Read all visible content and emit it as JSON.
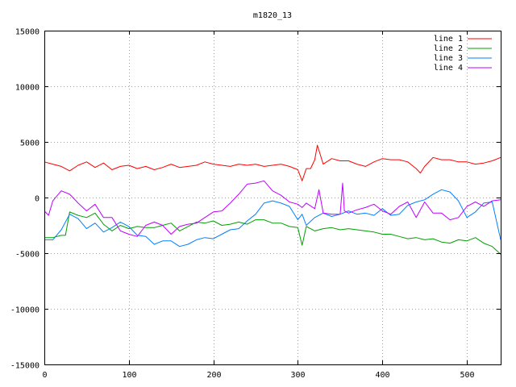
{
  "chart_data": {
    "type": "line",
    "title": "m1820_13",
    "xlabel": "",
    "ylabel": "",
    "xlim": [
      0,
      540
    ],
    "ylim": [
      -15000,
      15000
    ],
    "xticks": [
      0,
      100,
      200,
      300,
      400,
      500
    ],
    "yticks": [
      -15000,
      -10000,
      -5000,
      0,
      5000,
      10000,
      15000
    ],
    "grid": true,
    "legend_position": "top-right",
    "series": [
      {
        "name": "line 1",
        "color": "#ff0000",
        "x": [
          0,
          10,
          20,
          30,
          40,
          50,
          60,
          70,
          80,
          90,
          100,
          110,
          120,
          130,
          140,
          150,
          160,
          170,
          180,
          190,
          200,
          210,
          220,
          230,
          240,
          250,
          260,
          270,
          280,
          290,
          300,
          305,
          310,
          315,
          320,
          323,
          330,
          340,
          350,
          360,
          370,
          380,
          390,
          400,
          410,
          420,
          430,
          440,
          445,
          450,
          460,
          470,
          480,
          490,
          500,
          510,
          520,
          530,
          540
        ],
        "y": [
          3200,
          3000,
          2800,
          2400,
          2900,
          3200,
          2700,
          3100,
          2500,
          2800,
          2900,
          2600,
          2800,
          2500,
          2700,
          3000,
          2700,
          2800,
          2900,
          3200,
          3000,
          2900,
          2800,
          3000,
          2900,
          3000,
          2800,
          2900,
          3000,
          2800,
          2500,
          1500,
          2600,
          2600,
          3400,
          4700,
          3000,
          3500,
          3300,
          3300,
          3000,
          2800,
          3200,
          3500,
          3400,
          3400,
          3200,
          2600,
          2200,
          2800,
          3600,
          3400,
          3400,
          3200,
          3200,
          3000,
          3100,
          3300,
          3600
        ]
      },
      {
        "name": "line 2",
        "color": "#00a000",
        "x": [
          0,
          10,
          20,
          25,
          30,
          40,
          50,
          60,
          70,
          80,
          90,
          100,
          110,
          120,
          130,
          140,
          150,
          160,
          170,
          180,
          190,
          200,
          210,
          220,
          230,
          240,
          250,
          260,
          270,
          280,
          290,
          300,
          305,
          310,
          320,
          330,
          340,
          350,
          360,
          370,
          380,
          390,
          400,
          410,
          420,
          430,
          440,
          450,
          460,
          470,
          480,
          490,
          500,
          510,
          520,
          530,
          540
        ],
        "y": [
          -3600,
          -3600,
          -3400,
          -3400,
          -1300,
          -1600,
          -1800,
          -1400,
          -2400,
          -3000,
          -2500,
          -2800,
          -2600,
          -2700,
          -2700,
          -2500,
          -2300,
          -3000,
          -2600,
          -2200,
          -2300,
          -2100,
          -2500,
          -2400,
          -2200,
          -2400,
          -2000,
          -2000,
          -2300,
          -2300,
          -2600,
          -2700,
          -4300,
          -2600,
          -3000,
          -2800,
          -2700,
          -2900,
          -2800,
          -2900,
          -3000,
          -3100,
          -3300,
          -3300,
          -3500,
          -3700,
          -3600,
          -3800,
          -3700,
          -4000,
          -4100,
          -3800,
          -3900,
          -3600,
          -4100,
          -4400,
          -5100
        ]
      },
      {
        "name": "line 3",
        "color": "#0080ff",
        "x": [
          0,
          10,
          20,
          30,
          40,
          50,
          60,
          70,
          80,
          90,
          100,
          110,
          120,
          130,
          140,
          150,
          160,
          170,
          180,
          190,
          200,
          210,
          220,
          230,
          240,
          250,
          260,
          270,
          280,
          290,
          300,
          305,
          310,
          320,
          330,
          340,
          350,
          360,
          370,
          380,
          390,
          400,
          410,
          420,
          430,
          440,
          450,
          460,
          470,
          480,
          490,
          500,
          510,
          520,
          530,
          540
        ],
        "y": [
          -3800,
          -3800,
          -2900,
          -1500,
          -1900,
          -2800,
          -2300,
          -3100,
          -2700,
          -2200,
          -2600,
          -3400,
          -3500,
          -4200,
          -3900,
          -3900,
          -4400,
          -4200,
          -3800,
          -3600,
          -3700,
          -3300,
          -2900,
          -2800,
          -2100,
          -1500,
          -500,
          -300,
          -500,
          -800,
          -2000,
          -1500,
          -2500,
          -1800,
          -1400,
          -1700,
          -1500,
          -1200,
          -1500,
          -1400,
          -1600,
          -1000,
          -1600,
          -1500,
          -700,
          -400,
          -200,
          300,
          700,
          500,
          -300,
          -1800,
          -1300,
          -500,
          -400,
          -3800
        ]
      },
      {
        "name": "line 4",
        "color": "#c000ff",
        "x": [
          0,
          5,
          10,
          20,
          30,
          40,
          50,
          60,
          70,
          80,
          90,
          100,
          110,
          120,
          130,
          140,
          150,
          160,
          170,
          180,
          190,
          200,
          210,
          220,
          230,
          240,
          250,
          260,
          270,
          280,
          290,
          300,
          305,
          310,
          320,
          325,
          330,
          340,
          350,
          353,
          355,
          360,
          370,
          380,
          390,
          400,
          410,
          420,
          430,
          440,
          450,
          460,
          470,
          480,
          490,
          500,
          510,
          520,
          530,
          540
        ],
        "y": [
          -1200,
          -1600,
          -300,
          600,
          300,
          -500,
          -1200,
          -600,
          -1800,
          -1800,
          -3000,
          -3300,
          -3500,
          -2500,
          -2200,
          -2500,
          -3300,
          -2600,
          -2400,
          -2300,
          -1800,
          -1300,
          -1200,
          -500,
          300,
          1200,
          1300,
          1500,
          600,
          200,
          -400,
          -600,
          -900,
          -500,
          -1000,
          700,
          -1400,
          -1500,
          -1500,
          1300,
          -1200,
          -1400,
          -1100,
          -900,
          -600,
          -1200,
          -1500,
          -800,
          -400,
          -1800,
          -400,
          -1400,
          -1400,
          -2000,
          -1800,
          -800,
          -400,
          -800,
          -300,
          -200
        ]
      }
    ]
  }
}
